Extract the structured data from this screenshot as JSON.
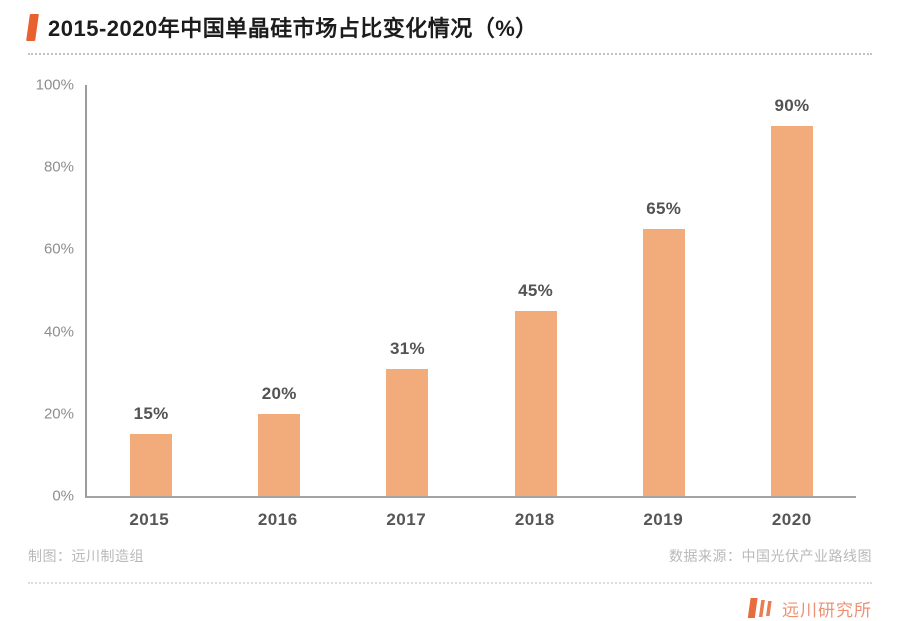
{
  "header": {
    "title": "2015-2020年中国单晶硅市场占比变化情况（%）"
  },
  "chart_data": {
    "type": "bar",
    "title": "2015-2020年中国单晶硅市场占比变化情况（%）",
    "categories": [
      "2015",
      "2016",
      "2017",
      "2018",
      "2019",
      "2020"
    ],
    "values": [
      15,
      20,
      31,
      45,
      65,
      90
    ],
    "value_labels": [
      "15%",
      "20%",
      "31%",
      "45%",
      "65%",
      "90%"
    ],
    "xlabel": "",
    "ylabel": "",
    "ylim": [
      0,
      100
    ],
    "yticks": [
      0,
      20,
      40,
      60,
      80,
      100
    ],
    "ytick_labels": [
      "0%",
      "20%",
      "40%",
      "60%",
      "80%",
      "100%"
    ],
    "grid": false,
    "legend": false,
    "bar_color": "#F2AC7C"
  },
  "notes": {
    "credit": "制图：远川制造组",
    "source": "数据来源：中国光伏产业路线图"
  },
  "footer": {
    "brand": "远川研究所"
  },
  "colors": {
    "accent": "#E8612F",
    "bar": "#F2AC7C",
    "axis": "#9C9C9C",
    "value_label": "#535355",
    "tick_label": "#8E8E8E",
    "note_text": "#B9B9B9",
    "brand_orange": "#E97548",
    "brand_text": "#EC9173"
  }
}
